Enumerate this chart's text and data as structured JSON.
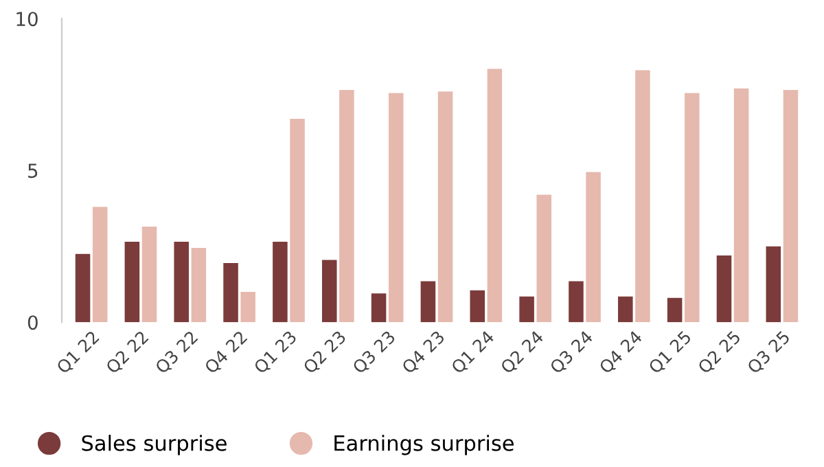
{
  "chart_data": {
    "type": "bar",
    "categories": [
      "Q1 22",
      "Q2 22",
      "Q3 22",
      "Q4 22",
      "Q1 23",
      "Q2 23",
      "Q3 23",
      "Q4 23",
      "Q1 24",
      "Q2 24",
      "Q3 24",
      "Q4 24",
      "Q1 25",
      "Q2 25",
      "Q3 25"
    ],
    "series": [
      {
        "name": "Sales surprise",
        "color": "#7b3b3b",
        "values": [
          2.25,
          2.65,
          2.65,
          1.95,
          2.65,
          2.05,
          0.95,
          1.35,
          1.05,
          0.85,
          1.35,
          0.85,
          0.8,
          2.2,
          2.5
        ]
      },
      {
        "name": "Earnings surprise",
        "color": "#e6b9ae",
        "values": [
          3.8,
          3.15,
          2.45,
          1.0,
          6.7,
          7.65,
          7.55,
          7.6,
          8.35,
          4.2,
          4.95,
          8.3,
          7.55,
          7.7,
          7.65
        ]
      }
    ],
    "ylim": [
      0,
      10
    ],
    "yticks": [
      0,
      5,
      10
    ],
    "grid": false,
    "legend": "bottom left"
  }
}
